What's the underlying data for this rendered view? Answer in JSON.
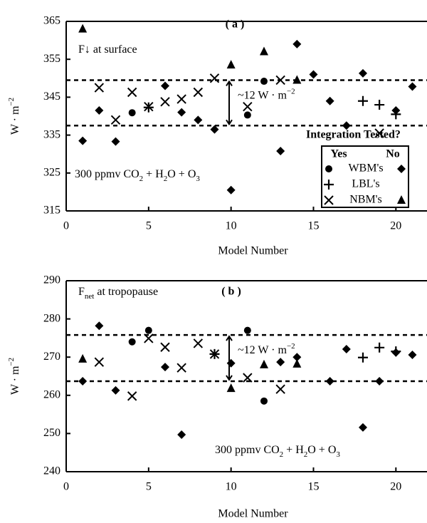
{
  "chart_data": [
    {
      "type": "scatter",
      "panel_label": "( a )",
      "title": [
        "F↓ at surface"
      ],
      "annotation": [
        "300 ppmv CO",
        "2",
        " + H",
        "2",
        "O + O",
        "3"
      ],
      "x_label": "Model Number",
      "y_label": [
        "W · m",
        "−2"
      ],
      "xlim": [
        0,
        21.8
      ],
      "xticks": [
        0,
        5,
        10,
        15,
        20
      ],
      "ylim": [
        315,
        365
      ],
      "yticks": [
        315,
        325,
        335,
        345,
        355,
        365
      ],
      "hlines": [
        349.5,
        337.5
      ],
      "spread_label": [
        "~12 W · m",
        "−2"
      ],
      "legend": {
        "title": "Integration Tested?",
        "columns": [
          "Yes",
          "No"
        ]
      },
      "series": [
        {
          "name": "WBM's",
          "tested": "Yes",
          "marker": "circle",
          "color": "#000",
          "x": [
            4,
            11,
            12
          ],
          "values": [
            340.9,
            340.3,
            349.2
          ]
        },
        {
          "name": "WBM's",
          "tested": "No",
          "marker": "diamond",
          "color": "#000",
          "x": [
            1,
            2,
            3,
            6,
            7,
            8,
            9,
            10,
            13,
            14,
            15,
            16,
            17,
            18,
            20,
            21
          ],
          "values": [
            333.5,
            341.5,
            333.3,
            348,
            341,
            339,
            336.5,
            320.5,
            330.8,
            359,
            351,
            344,
            337.5,
            351.3,
            341.5,
            347.8
          ]
        },
        {
          "name": "LBL's",
          "tested": "Yes",
          "marker": "plus",
          "color": "#000",
          "x": [
            5,
            18,
            19,
            20
          ],
          "values": [
            342.3,
            344,
            343,
            340.5
          ]
        },
        {
          "name": "NBM's",
          "tested": "Yes",
          "marker": "x",
          "color": "#000",
          "x": [
            2,
            3,
            4,
            5,
            6,
            7,
            8,
            9,
            11,
            13,
            19
          ],
          "values": [
            347.5,
            339,
            346.3,
            342.5,
            343.8,
            344.5,
            346.3,
            350,
            342.5,
            349.5,
            335.5
          ]
        },
        {
          "name": "NBM's",
          "tested": "No",
          "marker": "triangle",
          "color": "#000",
          "x": [
            1,
            10,
            12,
            14
          ],
          "values": [
            363,
            353.5,
            357,
            349.5
          ]
        }
      ]
    },
    {
      "type": "scatter",
      "panel_label": "( b )",
      "title": [
        "F",
        "net",
        "  at  tropopause"
      ],
      "annotation": [
        "300 ppmv CO",
        "2",
        " + H",
        "2",
        "O + O",
        "3"
      ],
      "x_label": "Model Number",
      "y_label": [
        "W · m",
        "−2"
      ],
      "xlim": [
        0,
        21.8
      ],
      "xticks": [
        0,
        5,
        10,
        15,
        20
      ],
      "ylim": [
        240,
        290
      ],
      "yticks": [
        240,
        250,
        260,
        270,
        280,
        290
      ],
      "hlines": [
        275.8,
        263.7
      ],
      "spread_label": [
        "~12 W · m",
        "−2"
      ],
      "series": [
        {
          "name": "WBM's",
          "tested": "Yes",
          "marker": "circle",
          "color": "#000",
          "x": [
            4,
            5,
            11,
            12
          ],
          "values": [
            274,
            277,
            277,
            258.5
          ]
        },
        {
          "name": "WBM's",
          "tested": "No",
          "marker": "diamond",
          "color": "#000",
          "x": [
            1,
            2,
            3,
            6,
            7,
            10,
            13,
            14,
            16,
            17,
            18,
            19,
            20,
            21
          ],
          "values": [
            263.7,
            278.2,
            261.3,
            267.4,
            249.7,
            268.4,
            268.7,
            270,
            263.7,
            272.1,
            251.6,
            263.7,
            271.2,
            270.6
          ]
        },
        {
          "name": "LBL's",
          "tested": "Yes",
          "marker": "plus",
          "color": "#000",
          "x": [
            9,
            18,
            19,
            20
          ],
          "values": [
            270.8,
            269.9,
            272.5,
            271.5
          ]
        },
        {
          "name": "NBM's",
          "tested": "Yes",
          "marker": "x",
          "color": "#000",
          "x": [
            2,
            4,
            5,
            6,
            7,
            8,
            9,
            11,
            13
          ],
          "values": [
            268.7,
            259.8,
            274.9,
            272.6,
            267.2,
            273.6,
            270.8,
            264.6,
            261.6
          ]
        },
        {
          "name": "NBM's",
          "tested": "No",
          "marker": "triangle",
          "color": "#000",
          "x": [
            1,
            10,
            12,
            14
          ],
          "values": [
            269.5,
            261.8,
            268,
            268.2
          ]
        }
      ]
    }
  ]
}
